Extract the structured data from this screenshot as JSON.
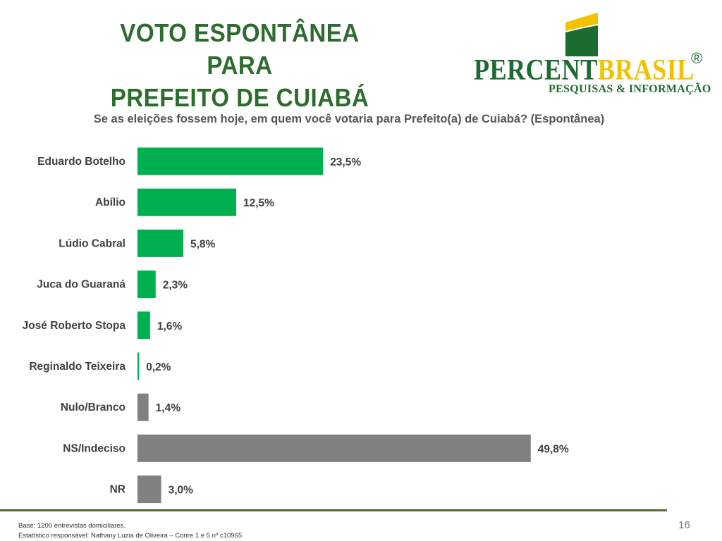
{
  "title": {
    "line1": "VOTO ESPONTÂNEA PARA",
    "line2": "PREFEITO DE CUIABÁ"
  },
  "logo": {
    "word_percent": "PERCENT",
    "word_brasil": "BRASIL",
    "registered": "®",
    "tagline": "PESQUISAS & INFORMAÇÃO",
    "colors": {
      "green": "#1c6b30",
      "yellow": "#f2c200"
    }
  },
  "question": "Se as eleições fossem hoje, em quem você votaria para Prefeito(a) de Cuiabá? (Espontânea)",
  "chart_data": {
    "type": "bar",
    "orientation": "horizontal",
    "categories": [
      "Eduardo Botelho",
      "Abílio",
      "Lúdio Cabral",
      "Juca do Guaraná",
      "José Roberto Stopa",
      "Reginaldo Teixeira",
      "Nulo/Branco",
      "NS/Indeciso",
      "NR"
    ],
    "values": [
      23.5,
      12.5,
      5.8,
      2.3,
      1.6,
      0.2,
      1.4,
      49.8,
      3.0
    ],
    "value_labels": [
      "23,5%",
      "12,5%",
      "5,8%",
      "2,3%",
      "1,6%",
      "0,2%",
      "1,4%",
      "49,8%",
      "3,0%"
    ],
    "bar_colors": [
      "#00b050",
      "#00b050",
      "#00b050",
      "#00b050",
      "#00b050",
      "#00b050",
      "#808080",
      "#808080",
      "#808080"
    ],
    "xlim": [
      0,
      50
    ],
    "grid": false,
    "legend": "none"
  },
  "footer": {
    "base": "Base: 1200 entrevistas domiciliares.",
    "statistician": "Estatístico responsável: Nathany Luzia de Oliveira – Conre 1 e 5 nº c10965",
    "page_number": "16",
    "line_color": "#556b2f"
  }
}
